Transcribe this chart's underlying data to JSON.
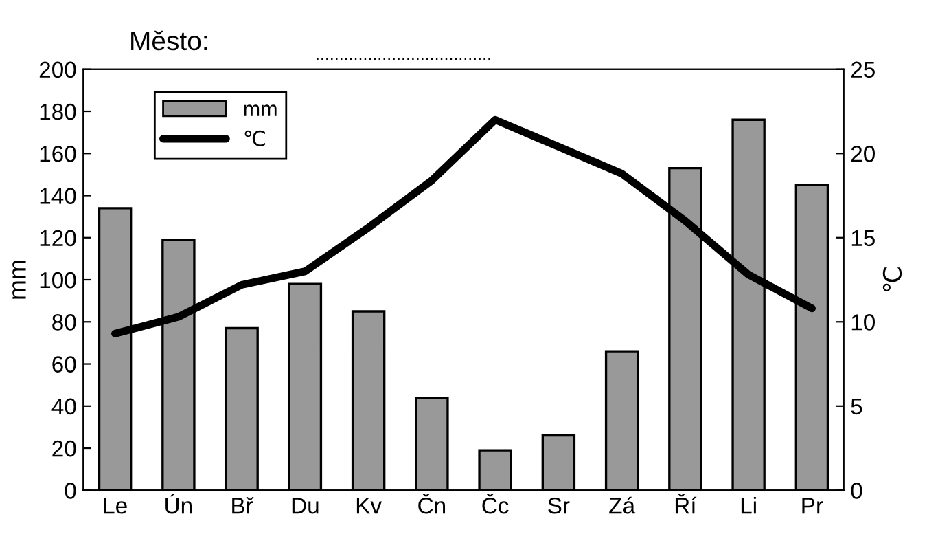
{
  "chart_data": {
    "type": "bar",
    "title": "Město:",
    "annotations": [
      "....................................."
    ],
    "categories": [
      "Le",
      "Ún",
      "Bř",
      "Du",
      "Kv",
      "Čn",
      "Čc",
      "Sr",
      "Zá",
      "Ří",
      "Li",
      "Pr"
    ],
    "series": [
      {
        "name": "mm",
        "color": "#999999",
        "values": [
          134,
          119,
          77,
          98,
          85,
          44,
          19,
          26,
          66,
          153,
          176,
          145
        ]
      },
      {
        "name": "℃",
        "type": "line",
        "axis": "y2",
        "color": "#000000",
        "values": [
          9.3,
          10.3,
          12.2,
          13.0,
          15.6,
          18.4,
          22.0,
          20.4,
          18.8,
          16.0,
          12.8,
          10.8
        ]
      }
    ],
    "ylabel": "mm",
    "y2label": "℃",
    "ylim": [
      0,
      200
    ],
    "yticks": [
      0,
      20,
      40,
      60,
      80,
      100,
      120,
      140,
      160,
      180,
      200
    ],
    "y2lim": [
      0,
      25
    ],
    "y2ticks": [
      0,
      5,
      10,
      15,
      20,
      25
    ],
    "legend": "top left",
    "grid": false,
    "marker": "none",
    "line_style": "solid"
  }
}
